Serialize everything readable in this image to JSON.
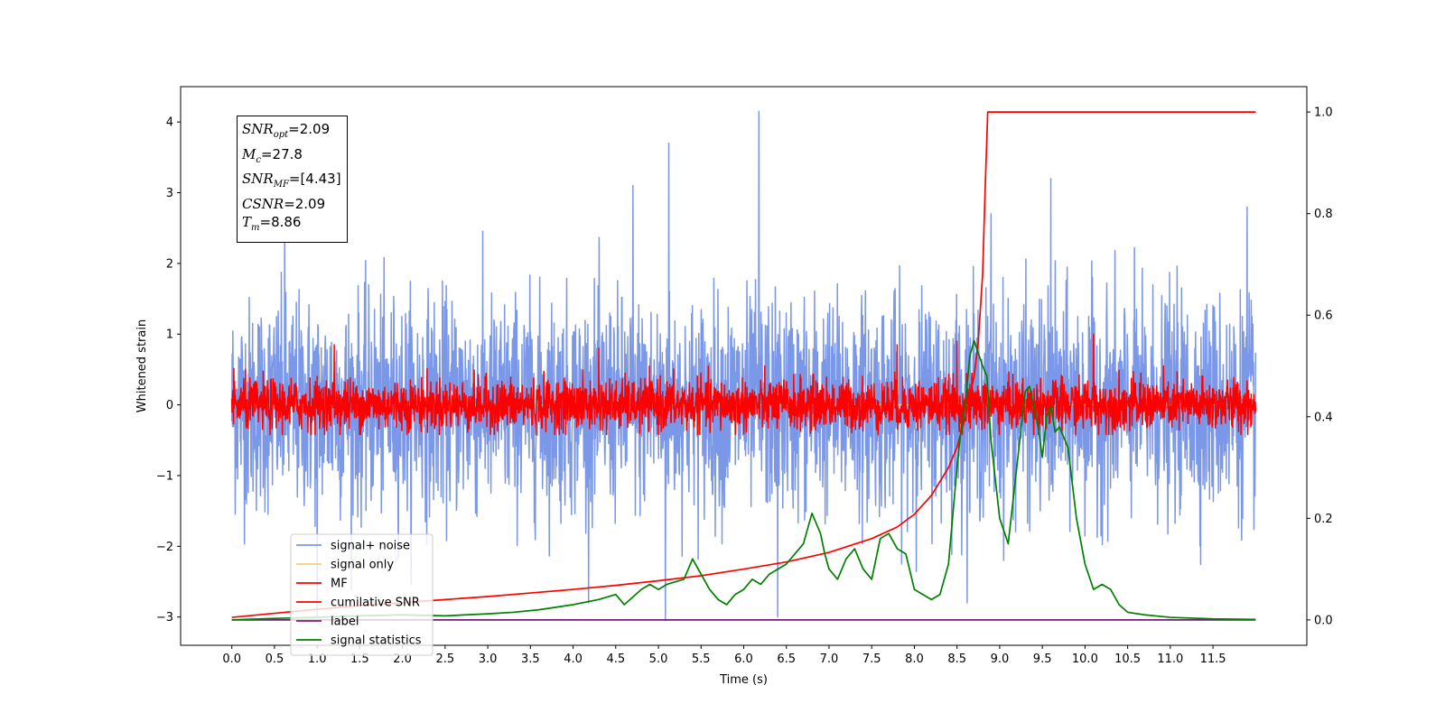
{
  "chart_data": {
    "type": "line",
    "title": "",
    "xlabel": "Time (s)",
    "ylabel": "Whitened strain",
    "y2label": "",
    "xlim": [
      -0.6,
      12.6
    ],
    "ylim": [
      -3.4,
      4.5
    ],
    "y2lim": [
      -0.05,
      1.05
    ],
    "xticks": [
      "0.0",
      "0.5",
      "1.0",
      "1.5",
      "2.0",
      "2.5",
      "3.0",
      "3.5",
      "4.0",
      "4.5",
      "5.0",
      "5.5",
      "6.0",
      "6.5",
      "7.0",
      "7.5",
      "8.0",
      "8.5",
      "9.0",
      "9.5",
      "10.0",
      "10.5",
      "11.0",
      "11.5"
    ],
    "yticks": [
      "−3",
      "−2",
      "−1",
      "0",
      "1",
      "2",
      "3",
      "4"
    ],
    "y2ticks": [
      "0.0",
      "0.2",
      "0.4",
      "0.6",
      "0.8",
      "1.0"
    ],
    "grid": false,
    "legend_position": "lower-left",
    "series": [
      {
        "name": "signal+ noise",
        "color": "#7b97e8",
        "axis": "left",
        "kind": "noise",
        "x_range": [
          0,
          12
        ],
        "std": 0.75,
        "spikes": [
          [
            6.18,
            4.15
          ],
          [
            5.12,
            3.7
          ],
          [
            9.6,
            3.2
          ],
          [
            0.62,
            3.2
          ],
          [
            4.7,
            3.1
          ],
          [
            8.9,
            2.7
          ],
          [
            11.9,
            2.8
          ],
          [
            1.0,
            -3.0
          ],
          [
            6.4,
            -3.0
          ],
          [
            5.08,
            -3.05
          ]
        ]
      },
      {
        "name": "signal only",
        "color": "#f5cf7a",
        "axis": "left",
        "kind": "flat",
        "value": 0
      },
      {
        "name": "MF",
        "color": "#ff0000",
        "axis": "left",
        "kind": "noise",
        "x_range": [
          0,
          12
        ],
        "std": 0.18,
        "spikes": [
          [
            10.1,
            1.0
          ],
          [
            8.5,
            0.9
          ],
          [
            1.2,
            0.85
          ],
          [
            4.3,
            0.8
          ],
          [
            7.8,
            0.85
          ]
        ]
      },
      {
        "name": "cumilative SNR",
        "color": "#ff0000",
        "axis": "right",
        "x": [
          0,
          0.5,
          1,
          1.5,
          2,
          2.5,
          3,
          3.5,
          4,
          4.5,
          5,
          5.5,
          6,
          6.5,
          7,
          7.5,
          7.8,
          8.0,
          8.2,
          8.4,
          8.5,
          8.6,
          8.7,
          8.75,
          8.8,
          8.83,
          8.86,
          8.9,
          9.5,
          10,
          11,
          12
        ],
        "values": [
          0.005,
          0.013,
          0.021,
          0.028,
          0.034,
          0.04,
          0.046,
          0.053,
          0.06,
          0.068,
          0.077,
          0.087,
          0.1,
          0.114,
          0.133,
          0.16,
          0.183,
          0.208,
          0.245,
          0.3,
          0.34,
          0.4,
          0.48,
          0.55,
          0.68,
          0.85,
          1.0,
          1.0,
          1.0,
          1.0,
          1.0,
          1.0
        ]
      },
      {
        "name": "label",
        "color": "#7b1a7b",
        "axis": "right",
        "x": [
          0,
          12
        ],
        "values": [
          0.0,
          0.0
        ]
      },
      {
        "name": "signal statistics",
        "color": "#008000",
        "axis": "right",
        "x": [
          0,
          0.5,
          1,
          1.5,
          2,
          2.5,
          3,
          3.3,
          3.6,
          4,
          4.3,
          4.5,
          4.6,
          4.8,
          4.9,
          5.0,
          5.1,
          5.3,
          5.4,
          5.5,
          5.6,
          5.7,
          5.8,
          5.9,
          6.0,
          6.1,
          6.2,
          6.3,
          6.4,
          6.5,
          6.6,
          6.7,
          6.8,
          6.9,
          6.95,
          7.0,
          7.1,
          7.2,
          7.3,
          7.4,
          7.5,
          7.6,
          7.7,
          7.8,
          7.9,
          8.0,
          8.1,
          8.2,
          8.3,
          8.4,
          8.5,
          8.55,
          8.6,
          8.65,
          8.7,
          8.8,
          8.85,
          8.9,
          9.0,
          9.1,
          9.2,
          9.3,
          9.35,
          9.4,
          9.45,
          9.5,
          9.55,
          9.6,
          9.65,
          9.7,
          9.8,
          9.9,
          10.0,
          10.1,
          10.2,
          10.3,
          10.4,
          10.5,
          10.7,
          11.0,
          11.5,
          12.0
        ],
        "values": [
          0.0,
          0.003,
          0.005,
          0.008,
          0.01,
          0.008,
          0.012,
          0.015,
          0.02,
          0.03,
          0.04,
          0.05,
          0.03,
          0.06,
          0.07,
          0.06,
          0.07,
          0.08,
          0.12,
          0.09,
          0.06,
          0.04,
          0.03,
          0.05,
          0.06,
          0.08,
          0.07,
          0.09,
          0.1,
          0.11,
          0.13,
          0.15,
          0.21,
          0.17,
          0.13,
          0.1,
          0.08,
          0.12,
          0.14,
          0.1,
          0.08,
          0.16,
          0.17,
          0.14,
          0.13,
          0.06,
          0.05,
          0.04,
          0.05,
          0.11,
          0.3,
          0.38,
          0.43,
          0.52,
          0.55,
          0.5,
          0.48,
          0.35,
          0.2,
          0.15,
          0.3,
          0.45,
          0.46,
          0.42,
          0.38,
          0.32,
          0.4,
          0.42,
          0.37,
          0.38,
          0.34,
          0.2,
          0.11,
          0.06,
          0.07,
          0.06,
          0.03,
          0.015,
          0.01,
          0.005,
          0.002,
          0.001
        ]
      }
    ],
    "annotation": {
      "rows": [
        {
          "sym": "SNR",
          "sub": "opt",
          "val": "=2.09"
        },
        {
          "sym": "M",
          "sub": "c",
          "val": "=27.8"
        },
        {
          "sym": "SNR",
          "sub": "MF",
          "val": "=[4.43]"
        },
        {
          "sym": "CSNR",
          "sub": "",
          "val": "=2.09"
        },
        {
          "sym": "T",
          "sub": "m",
          "val": "=8.86"
        }
      ]
    }
  }
}
